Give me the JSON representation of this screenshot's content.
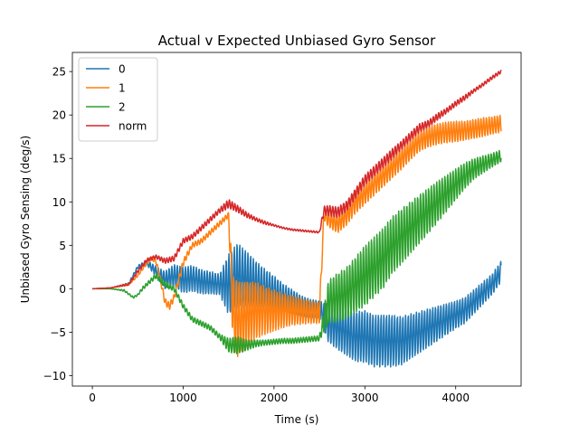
{
  "chart_data": {
    "type": "line",
    "title": "Actual v Expected Unbiased Gyro Sensor",
    "xlabel": "Time (s)",
    "ylabel": "Unbiased Gyro Sensing (deg/s)",
    "xlim": [
      -220,
      4720
    ],
    "ylim": [
      -11.2,
      27.2
    ],
    "xticks": [
      0,
      1000,
      2000,
      3000,
      4000
    ],
    "yticks": [
      -10,
      -5,
      0,
      5,
      10,
      15,
      20,
      25
    ],
    "grid": false,
    "legend_position": "top-left",
    "series": [
      {
        "name": "0",
        "color": "#1f77b4",
        "x": [
          0,
          200,
          400,
          500,
          600,
          700,
          800,
          900,
          1000,
          1100,
          1200,
          1300,
          1400,
          1500,
          1600,
          1700,
          1800,
          1900,
          2000,
          2100,
          2200,
          2300,
          2400,
          2500,
          2600,
          2700,
          2800,
          2900,
          3000,
          3100,
          3200,
          3300,
          3400,
          3500,
          3600,
          3700,
          3800,
          3900,
          4000,
          4100,
          4200,
          4300,
          4400,
          4500
        ],
        "y": [
          0,
          0.1,
          0.6,
          2.5,
          3.0,
          2.0,
          1.0,
          1.5,
          1.0,
          1.2,
          0.8,
          0.7,
          0.5,
          0.5,
          1.5,
          1.0,
          0.5,
          0,
          -0.5,
          -1.0,
          -1.5,
          -2.0,
          -2.3,
          -2.4,
          -4.0,
          -4.5,
          -5.0,
          -5.5,
          -5.5,
          -6.0,
          -6.0,
          -6.0,
          -6.0,
          -5.5,
          -5.0,
          -4.5,
          -4.0,
          -3.5,
          -3.0,
          -2.5,
          -1.5,
          -0.5,
          0.5,
          2.0
        ],
        "amp": [
          0,
          0,
          0.1,
          0.2,
          0.3,
          0.6,
          1.0,
          1.3,
          1.5,
          1.5,
          1.4,
          1.3,
          1.2,
          3.5,
          3.8,
          3.3,
          2.7,
          2.3,
          2.0,
          1.6,
          1.4,
          1.2,
          1.1,
          1.0,
          2.2,
          2.5,
          2.7,
          2.9,
          3.0,
          3.0,
          3.0,
          3.0,
          2.8,
          2.6,
          2.4,
          2.2,
          2.0,
          1.8,
          1.6,
          1.5,
          1.4,
          1.3,
          1.2,
          1.2
        ]
      },
      {
        "name": "1",
        "color": "#ff7f0e",
        "x": [
          0,
          200,
          400,
          500,
          600,
          650,
          700,
          750,
          800,
          850,
          900,
          1000,
          1100,
          1200,
          1300,
          1400,
          1500,
          1550,
          1600,
          1700,
          1800,
          1900,
          2000,
          2100,
          2200,
          2300,
          2400,
          2500,
          2550,
          2600,
          2700,
          2800,
          2900,
          3000,
          3100,
          3200,
          3300,
          3400,
          3500,
          3600,
          3700,
          3800,
          3900,
          4000,
          4100,
          4200,
          4300,
          4400,
          4500
        ],
        "y": [
          0,
          0.1,
          0.5,
          1.5,
          3.0,
          3.5,
          3.2,
          1.0,
          -1.5,
          -2.0,
          -1.0,
          3.0,
          5.0,
          5.5,
          6.5,
          7.5,
          8.5,
          -3.0,
          -3.5,
          -3.0,
          -2.5,
          -2.5,
          -2.5,
          -2.5,
          -2.5,
          -2.6,
          -2.7,
          -2.8,
          8.5,
          8.0,
          7.5,
          8.5,
          10.0,
          11.0,
          12.0,
          13.0,
          14.0,
          15.0,
          16.0,
          17.0,
          17.5,
          17.8,
          18.0,
          18.1,
          18.2,
          18.4,
          18.6,
          18.8,
          19.0
        ],
        "amp": [
          0,
          0,
          0.1,
          0.1,
          0.2,
          0.2,
          0.3,
          0.3,
          0.4,
          0.4,
          0.4,
          0.4,
          0.3,
          0.3,
          0.3,
          0.3,
          0.3,
          4.5,
          4.3,
          3.8,
          3.3,
          2.8,
          2.4,
          2.0,
          1.7,
          1.5,
          1.3,
          1.2,
          0.6,
          0.9,
          1.1,
          1.2,
          1.3,
          1.3,
          1.3,
          1.3,
          1.3,
          1.3,
          1.2,
          1.2,
          1.2,
          1.2,
          1.2,
          1.2,
          1.1,
          1.1,
          1.1,
          1.0,
          1.0
        ]
      },
      {
        "name": "2",
        "color": "#2ca02c",
        "x": [
          0,
          200,
          350,
          450,
          500,
          550,
          600,
          700,
          800,
          900,
          1000,
          1100,
          1200,
          1300,
          1400,
          1500,
          1600,
          1700,
          1800,
          1900,
          2000,
          2100,
          2200,
          2300,
          2400,
          2500,
          2600,
          2700,
          2800,
          2900,
          3000,
          3100,
          3200,
          3300,
          3400,
          3500,
          3600,
          3700,
          3800,
          3900,
          4000,
          4100,
          4200,
          4300,
          4400,
          4500
        ],
        "y": [
          0,
          0,
          -0.2,
          -1.0,
          -0.7,
          0,
          0.5,
          1.5,
          0.5,
          0,
          -2.0,
          -3.5,
          -4.0,
          -4.5,
          -5.5,
          -6.5,
          -6.5,
          -6.5,
          -6.3,
          -6.2,
          -6.1,
          -6.0,
          -6.0,
          -5.9,
          -5.8,
          -5.7,
          -1.5,
          -1.0,
          -0.5,
          0.5,
          1.5,
          2.5,
          3.5,
          5.0,
          6.0,
          7.0,
          8.0,
          9.0,
          10.0,
          11.0,
          12.0,
          13.0,
          13.8,
          14.3,
          14.8,
          15.3
        ],
        "amp": [
          0,
          0,
          0.1,
          0.1,
          0.1,
          0.2,
          0.2,
          0.3,
          0.3,
          0.3,
          0.3,
          0.3,
          0.3,
          0.3,
          0.3,
          0.8,
          1.0,
          0.6,
          0.4,
          0.3,
          0.3,
          0.3,
          0.3,
          0.3,
          0.3,
          0.3,
          2.5,
          2.8,
          3.0,
          3.2,
          3.5,
          3.5,
          3.5,
          3.3,
          3.2,
          3.0,
          2.8,
          2.6,
          2.4,
          2.1,
          1.8,
          1.5,
          1.2,
          1.0,
          0.8,
          0.7
        ]
      },
      {
        "name": "norm",
        "color": "#d62728",
        "x": [
          0,
          200,
          400,
          500,
          600,
          700,
          800,
          900,
          1000,
          1100,
          1200,
          1300,
          1400,
          1500,
          1600,
          1700,
          1800,
          1900,
          2000,
          2100,
          2200,
          2300,
          2400,
          2500,
          2550,
          2600,
          2700,
          2800,
          2900,
          3000,
          3100,
          3200,
          3300,
          3400,
          3500,
          3600,
          3700,
          3800,
          3900,
          4000,
          4100,
          4200,
          4300,
          4400,
          4500
        ],
        "y": [
          0,
          0.1,
          0.5,
          2.0,
          3.3,
          3.7,
          3.2,
          3.5,
          5.5,
          6.0,
          7.0,
          8.0,
          9.0,
          9.8,
          9.2,
          8.5,
          8.0,
          7.6,
          7.3,
          7.0,
          6.8,
          6.7,
          6.6,
          6.5,
          9.0,
          9.0,
          8.8,
          9.5,
          11.0,
          12.5,
          13.5,
          14.5,
          15.5,
          16.5,
          17.5,
          18.5,
          19.0,
          19.8,
          20.5,
          21.3,
          22.0,
          22.8,
          23.5,
          24.3,
          25.0
        ],
        "amp": [
          0,
          0,
          0.1,
          0.2,
          0.2,
          0.2,
          0.3,
          0.3,
          0.3,
          0.3,
          0.3,
          0.3,
          0.3,
          0.5,
          0.4,
          0.3,
          0.2,
          0.2,
          0.1,
          0.1,
          0.1,
          0.1,
          0.1,
          0.1,
          0.5,
          0.6,
          0.6,
          0.6,
          0.6,
          0.6,
          0.6,
          0.6,
          0.6,
          0.5,
          0.5,
          0.5,
          0.4,
          0.4,
          0.3,
          0.3,
          0.3,
          0.2,
          0.2,
          0.2,
          0.2
        ]
      }
    ]
  }
}
